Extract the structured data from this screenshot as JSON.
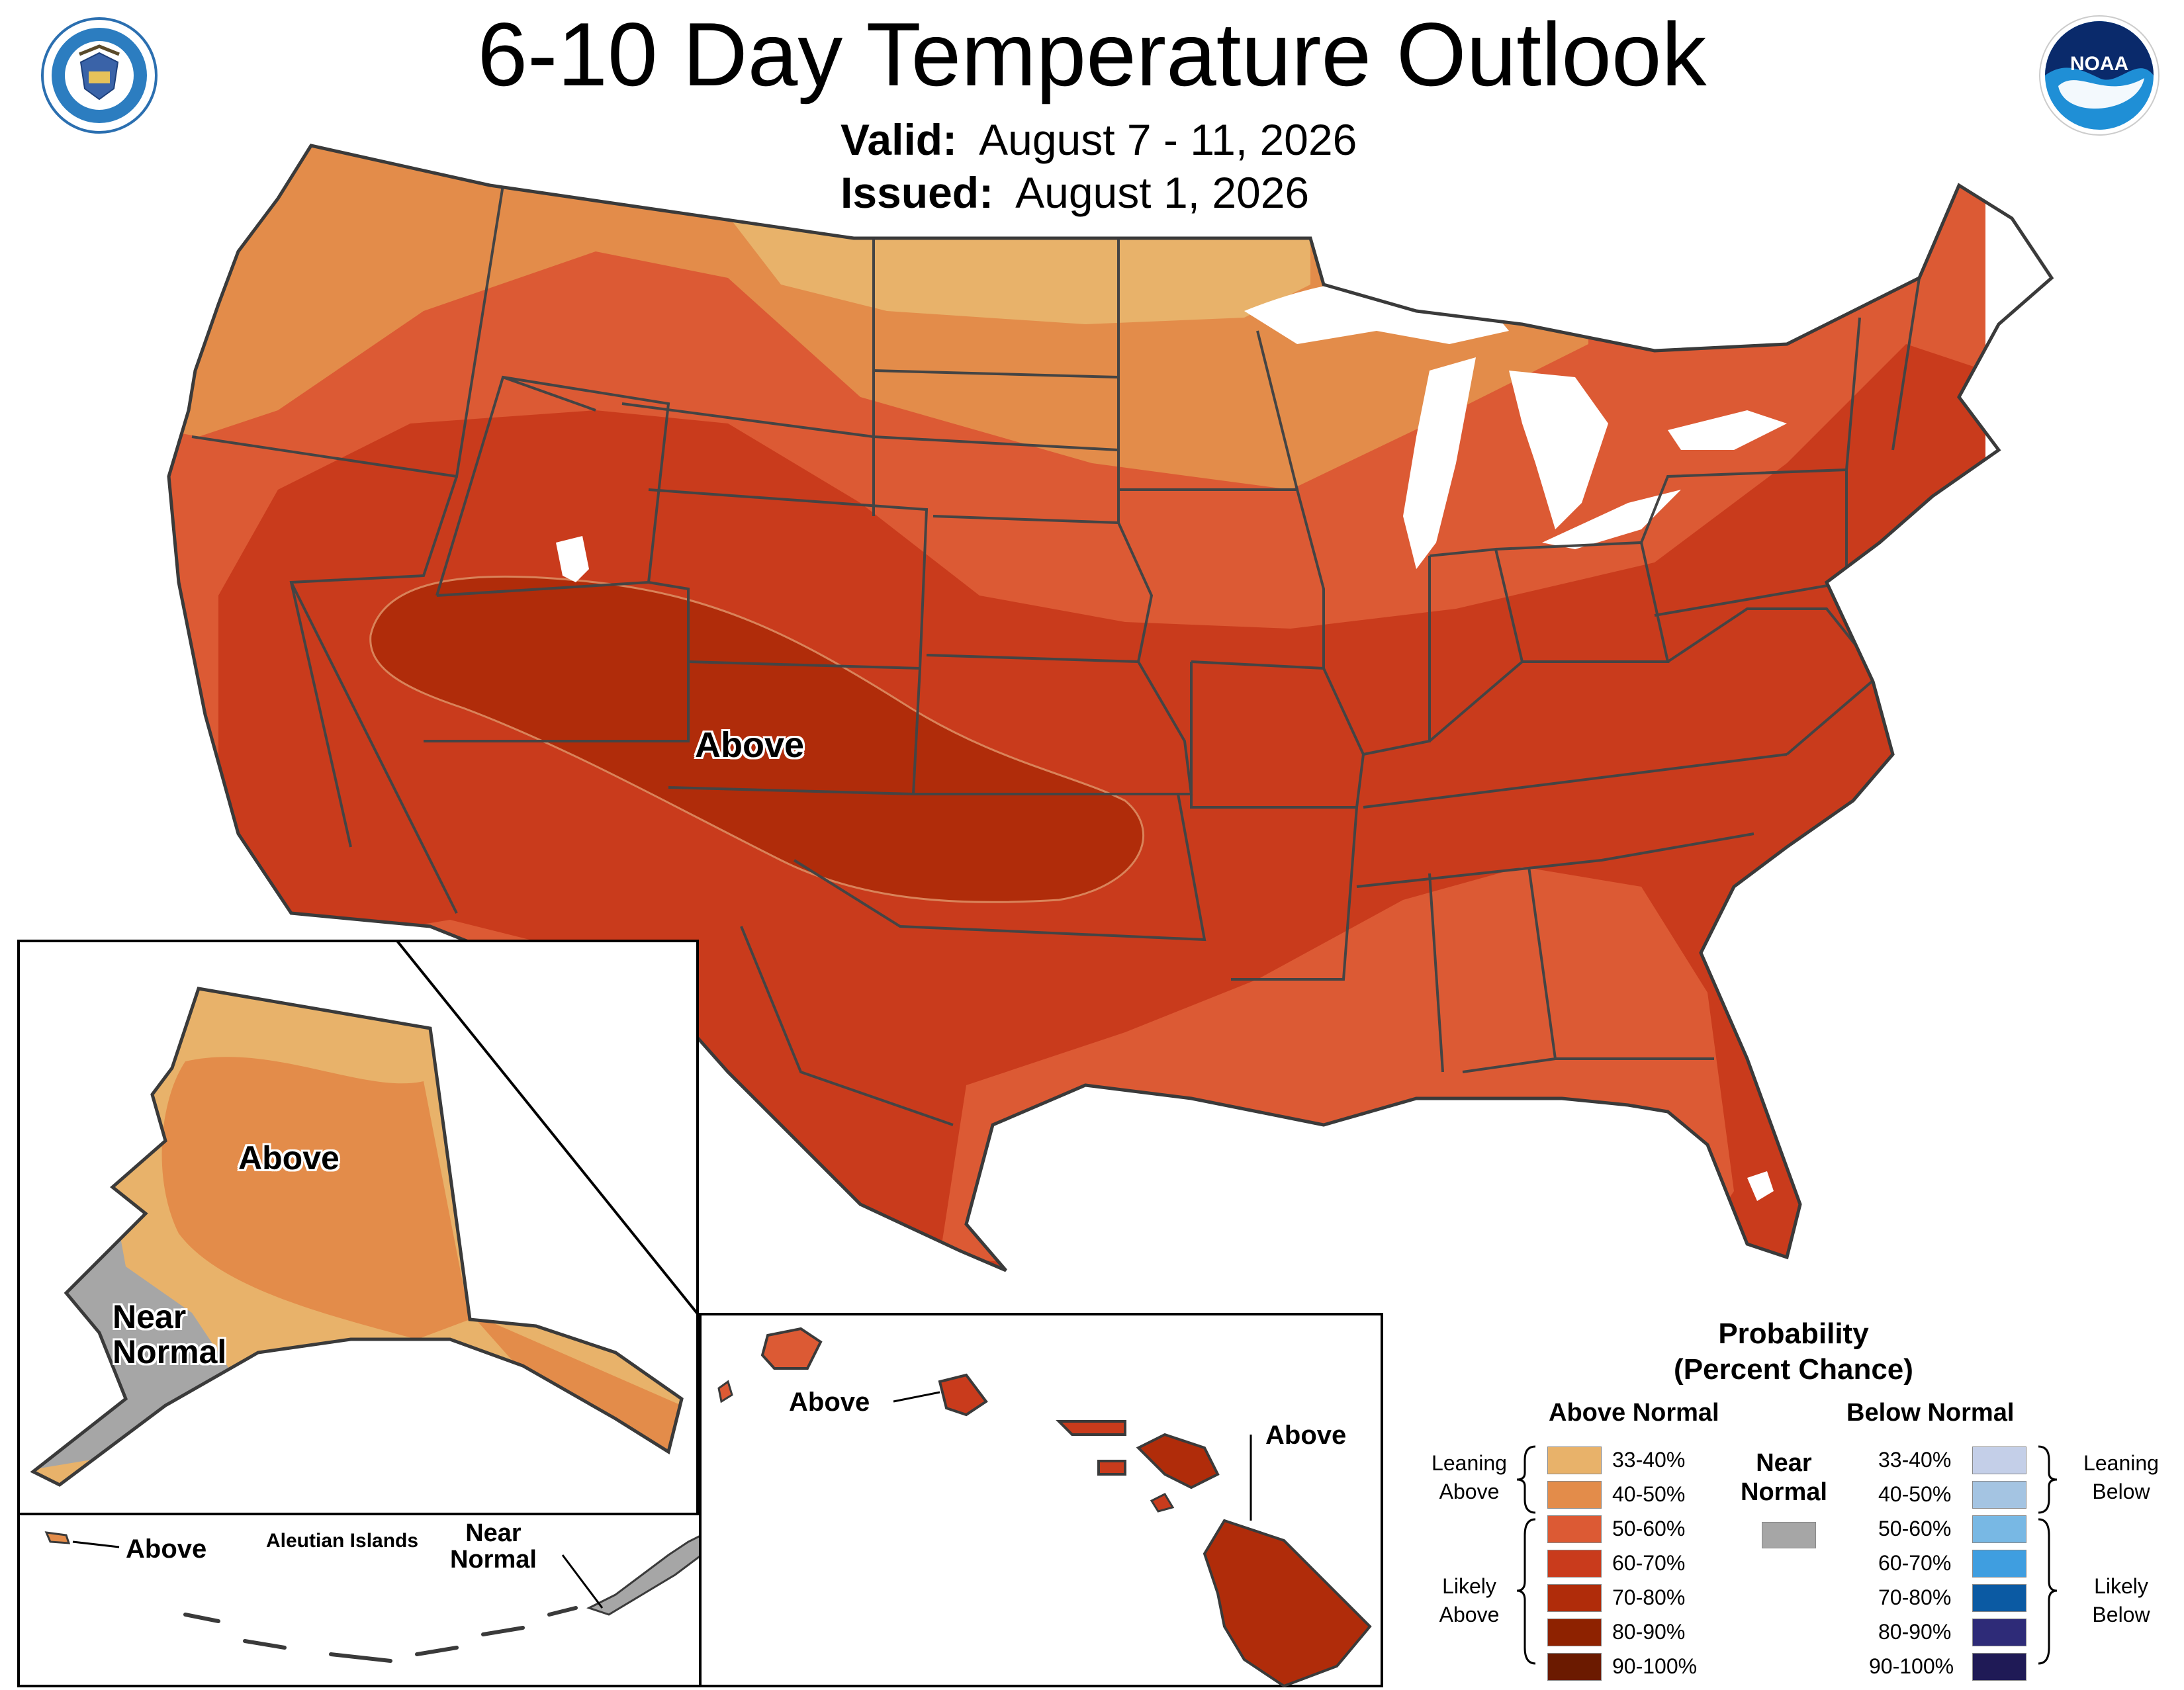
{
  "header": {
    "title": "6-10 Day Temperature Outlook",
    "valid_label": "Valid:",
    "valid_value": "August 7 - 11, 2026",
    "issued_label": "Issued:",
    "issued_value": "August 1, 2026"
  },
  "logos": {
    "doc_seal": "department-of-commerce-seal",
    "noaa": "NOAA"
  },
  "map_labels": {
    "conus_above": "Above",
    "alaska_above": "Above",
    "alaska_near_normal": "Near\nNormal",
    "aleutian_above": "Above",
    "aleutian_title": "Aleutian Islands",
    "aleutian_near_normal": "Near\nNormal",
    "hawaii_above_west": "Above",
    "hawaii_above_east": "Above"
  },
  "colors": {
    "above_33_40": "#e8b26a",
    "above_40_50": "#e38c4a",
    "above_50_60": "#dc5a34",
    "above_60_70": "#c93b1c",
    "above_70_80": "#b02c0a",
    "above_80_90": "#8e2200",
    "above_90_100": "#6b1a00",
    "near_normal": "#a6a6a6",
    "below_33_40": "#c4cfe8",
    "below_40_50": "#a4c4e2",
    "below_50_60": "#78b8e4",
    "below_60_70": "#3f9ee0",
    "below_70_80": "#0b5aa3",
    "below_80_90": "#2e2b78",
    "below_90_100": "#1f1a56",
    "great_lakes": "#ffffff",
    "state_border": "#444444"
  },
  "legend": {
    "title_line1": "Probability",
    "title_line2": "(Percent Chance)",
    "above_header": "Above Normal",
    "below_header": "Below Normal",
    "near_normal": "Near\nNormal",
    "leaning_above": "Leaning\nAbove",
    "likely_above": "Likely\nAbove",
    "leaning_below": "Leaning\nBelow",
    "likely_below": "Likely\nBelow",
    "ranges": [
      "33-40%",
      "40-50%",
      "50-60%",
      "60-70%",
      "70-80%",
      "80-90%",
      "90-100%"
    ]
  }
}
